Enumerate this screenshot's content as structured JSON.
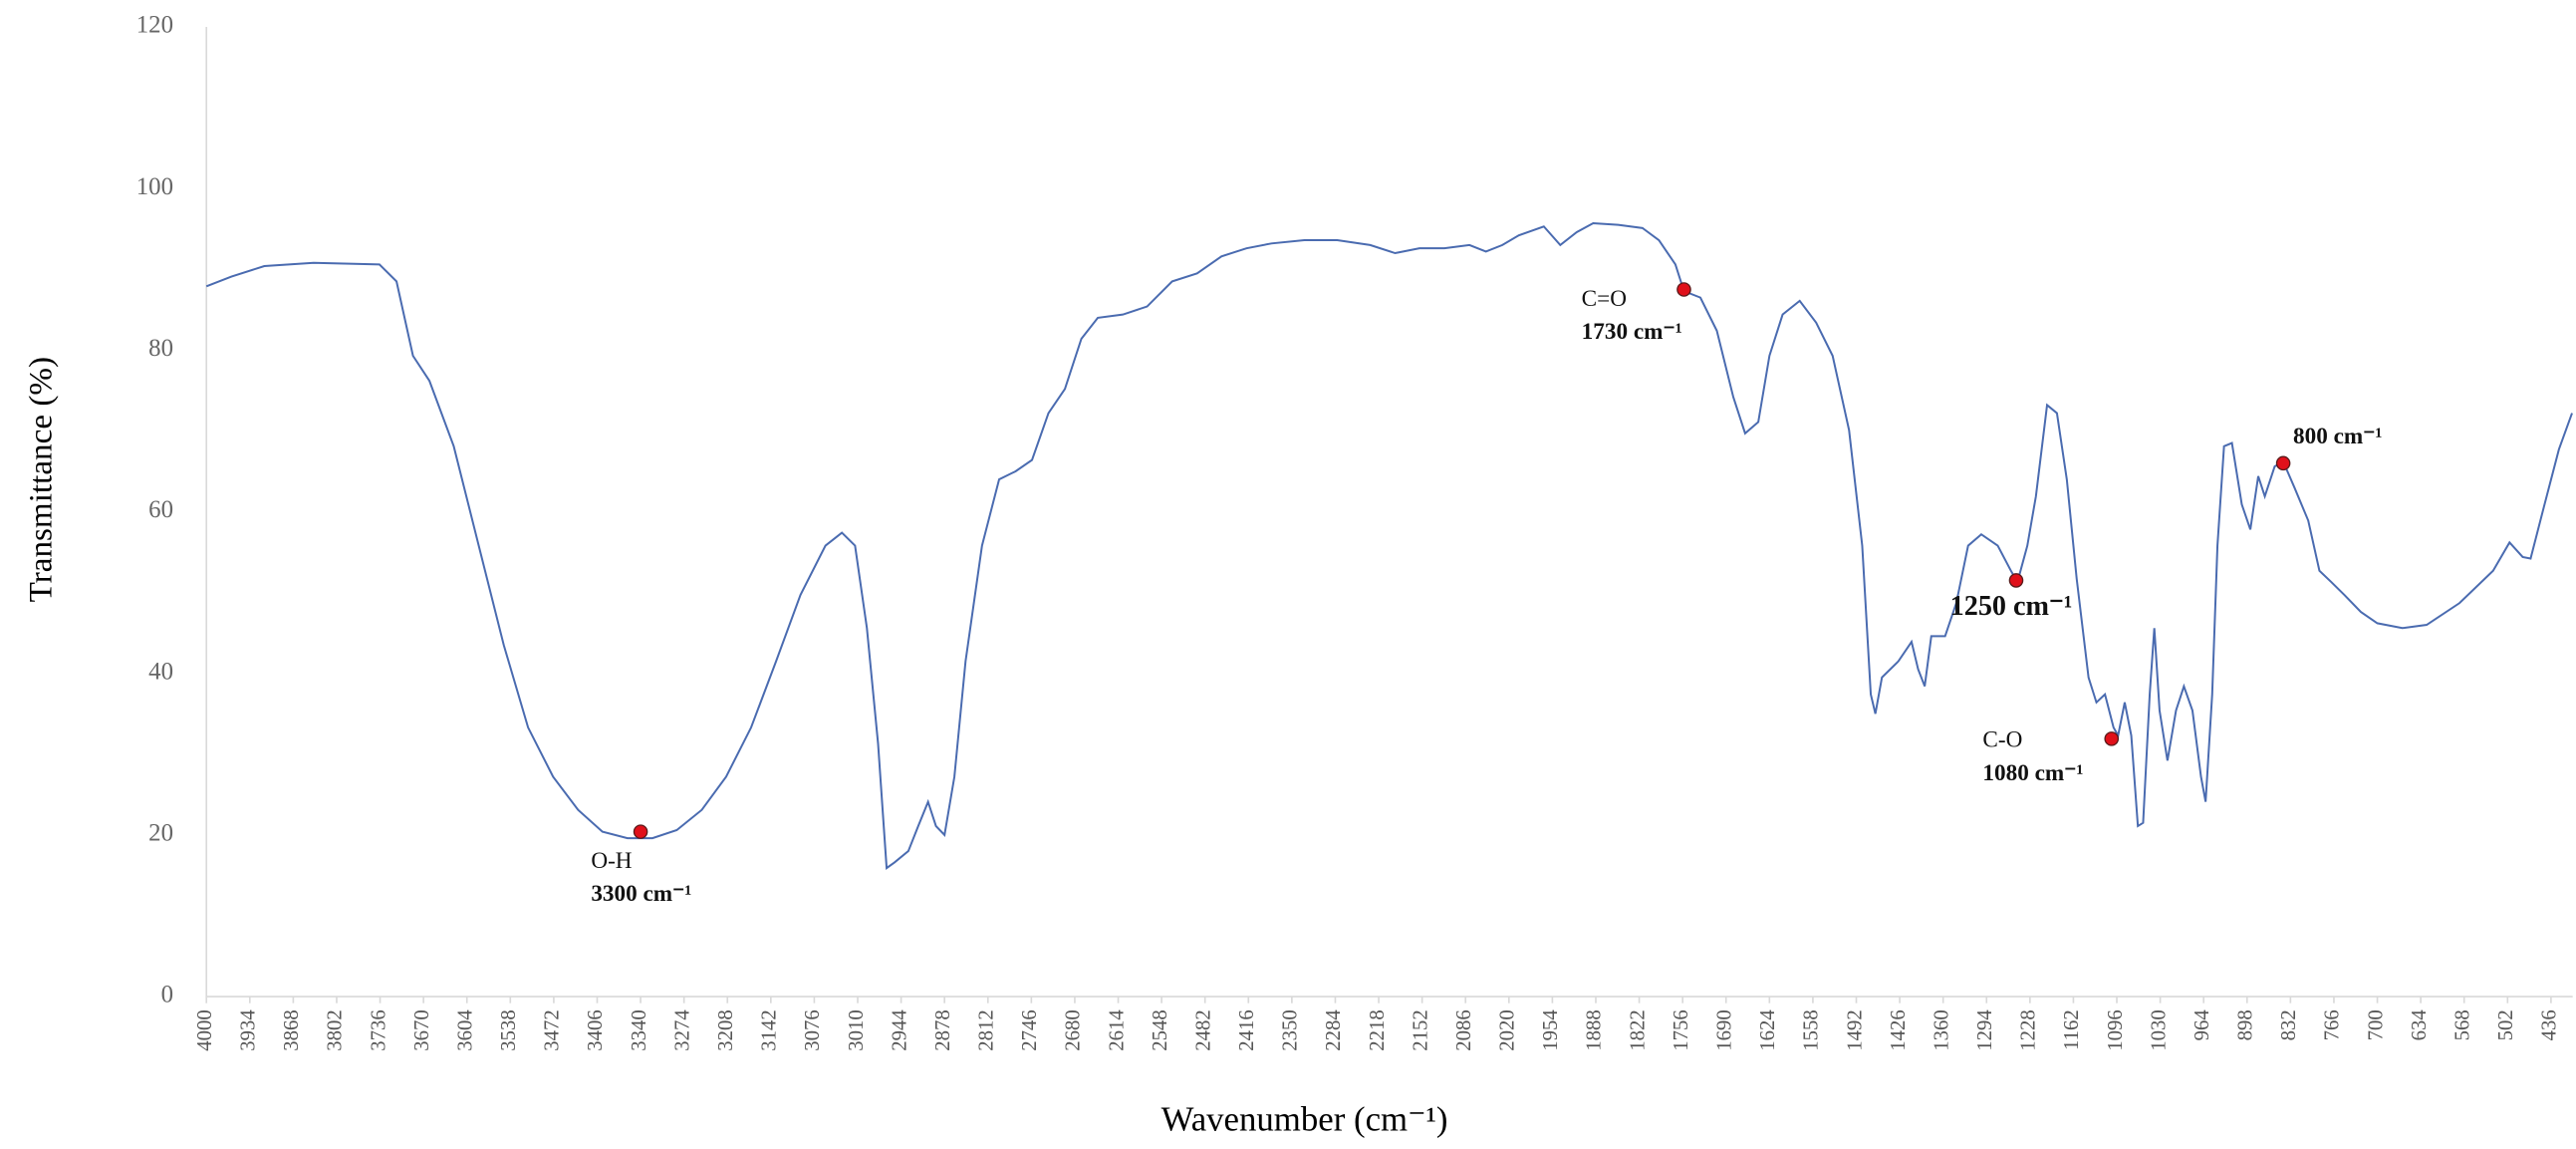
{
  "chart_data": {
    "type": "line",
    "xlabel": "Wavenumber (cm⁻¹)",
    "ylabel": "Transmittance (%)",
    "color": "#4a6bb0",
    "xlim": [
      4000,
      403
    ],
    "ylim": [
      0,
      120
    ],
    "yticks": [
      0,
      20,
      40,
      60,
      80,
      100,
      120
    ],
    "xticks": [
      4000,
      3934,
      3868,
      3802,
      3736,
      3670,
      3604,
      3538,
      3472,
      3406,
      3340,
      3274,
      3208,
      3142,
      3076,
      3010,
      2944,
      2878,
      2812,
      2746,
      2680,
      2614,
      2548,
      2482,
      2416,
      2350,
      2284,
      2218,
      2152,
      2086,
      2020,
      1954,
      1888,
      1822,
      1756,
      1690,
      1624,
      1558,
      1492,
      1426,
      1360,
      1294,
      1228,
      1162,
      1096,
      1030,
      964,
      898,
      832,
      766,
      700,
      634,
      568,
      502,
      436
    ],
    "grid": false,
    "x": [
      4000,
      3962,
      3912,
      3837,
      3737,
      3711,
      3686,
      3661,
      3624,
      3586,
      3548,
      3511,
      3473,
      3435,
      3398,
      3360,
      3322,
      3285,
      3247,
      3210,
      3172,
      3134,
      3097,
      3059,
      3034,
      3014,
      2996,
      2979,
      2966,
      2954,
      2933,
      2918,
      2903,
      2891,
      2878,
      2863,
      2846,
      2821,
      2795,
      2770,
      2745,
      2720,
      2695,
      2670,
      2645,
      2607,
      2570,
      2532,
      2494,
      2457,
      2419,
      2381,
      2331,
      2281,
      2231,
      2193,
      2156,
      2118,
      2080,
      2055,
      2030,
      2005,
      1967,
      1942,
      1917,
      1892,
      1854,
      1817,
      1792,
      1767,
      1754,
      1729,
      1704,
      1679,
      1661,
      1641,
      1624,
      1604,
      1578,
      1553,
      1528,
      1503,
      1483,
      1470,
      1463,
      1453,
      1428,
      1408,
      1398,
      1388,
      1378,
      1357,
      1340,
      1322,
      1302,
      1277,
      1257,
      1247,
      1232,
      1219,
      1202,
      1187,
      1172,
      1157,
      1139,
      1127,
      1114,
      1101,
      1094,
      1084,
      1074,
      1064,
      1056,
      1046,
      1039,
      1031,
      1019,
      1006,
      994,
      981,
      968,
      961,
      951,
      943,
      933,
      921,
      906,
      893,
      881,
      871,
      856,
      843,
      826,
      805,
      788,
      770,
      750,
      725,
      700,
      662,
      625,
      575,
      524,
      499,
      479,
      467,
      449,
      424,
      404
    ],
    "values": [
      87.9,
      89.1,
      90.4,
      90.8,
      90.6,
      88.5,
      79.3,
      76.2,
      68.1,
      55.8,
      43.5,
      33.3,
      27.2,
      23.1,
      20.4,
      19.6,
      19.6,
      20.6,
      23.1,
      27.2,
      33.3,
      41.5,
      49.7,
      55.8,
      57.4,
      55.8,
      45.6,
      31.3,
      15.9,
      16.6,
      18.0,
      21.1,
      24.1,
      21.1,
      20.0,
      27.2,
      41.5,
      55.8,
      64.0,
      65.0,
      66.4,
      72.2,
      75.2,
      81.4,
      84.0,
      84.4,
      85.4,
      88.5,
      89.5,
      91.6,
      92.6,
      93.2,
      93.6,
      93.6,
      93.0,
      92.0,
      92.6,
      92.6,
      93.0,
      92.2,
      93.0,
      94.2,
      95.3,
      93.0,
      94.6,
      95.7,
      95.5,
      95.1,
      93.6,
      90.6,
      87.3,
      86.5,
      82.4,
      74.2,
      69.7,
      71.1,
      79.3,
      84.4,
      86.1,
      83.4,
      79.3,
      70.1,
      55.8,
      37.4,
      35.0,
      39.5,
      41.5,
      43.9,
      40.5,
      38.4,
      44.6,
      44.6,
      48.7,
      55.8,
      57.2,
      55.8,
      52.7,
      51.3,
      55.8,
      61.9,
      73.2,
      72.2,
      64.0,
      51.7,
      39.5,
      36.4,
      37.4,
      33.3,
      32.3,
      36.4,
      32.3,
      21.1,
      21.5,
      37.4,
      45.6,
      35.4,
      29.2,
      35.4,
      38.4,
      35.4,
      27.2,
      24.1,
      37.4,
      55.8,
      68.1,
      68.5,
      60.9,
      57.8,
      64.4,
      61.9,
      65.6,
      66.2,
      63.0,
      58.9,
      52.7,
      51.3,
      49.7,
      47.6,
      46.2,
      45.6,
      46.0,
      48.7,
      52.7,
      56.2,
      54.4,
      54.2,
      59.9,
      67.7,
      72.2
    ],
    "annotations": [
      {
        "x": 3340,
        "y": 20.4,
        "lines": [
          "O-H",
          "3300 cm⁻¹"
        ]
      },
      {
        "x": 1754,
        "y": 87.5,
        "lines": [
          "C=O",
          "1730 cm⁻¹"
        ]
      },
      {
        "x": 1249,
        "y": 51.5,
        "lines": [
          "1250 cm⁻¹"
        ]
      },
      {
        "x": 1104,
        "y": 31.9,
        "lines": [
          "C-O",
          "1080 cm⁻¹"
        ]
      },
      {
        "x": 843,
        "y": 66.0,
        "lines": [
          "800 cm⁻¹"
        ]
      }
    ]
  }
}
